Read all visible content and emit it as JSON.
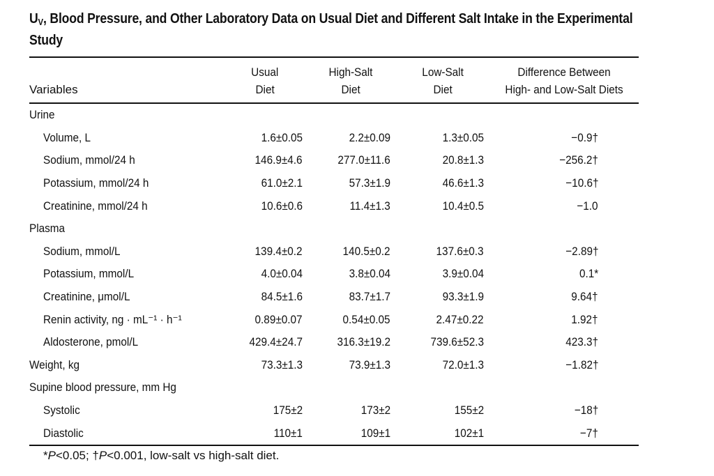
{
  "title": {
    "prefix": "U",
    "subscript": "V",
    "rest": ", Blood Pressure, and Other Laboratory Data on Usual Diet and Different Salt Intake in the Experimental Study"
  },
  "headers": {
    "variables": "Variables",
    "usual_line1": "Usual",
    "usual_line2": "Diet",
    "high_line1": "High-Salt",
    "high_line2": "Diet",
    "low_line1": "Low-Salt",
    "low_line2": "Diet",
    "diff_line1": "Difference Between",
    "diff_line2": "High- and Low-Salt Diets"
  },
  "rows": [
    {
      "label": "Urine",
      "section": true,
      "usual": "",
      "high": "",
      "low": "",
      "diff": ""
    },
    {
      "label": "Volume, L",
      "section": false,
      "usual": "1.6±0.05",
      "high": "2.2±0.09",
      "low": "1.3±0.05",
      "diff": "−0.9†"
    },
    {
      "label": "Sodium, mmol/24 h",
      "section": false,
      "usual": "146.9±4.6",
      "high": "277.0±11.6",
      "low": "20.8±1.3",
      "diff": "−256.2†"
    },
    {
      "label": "Potassium, mmol/24 h",
      "section": false,
      "usual": "61.0±2.1",
      "high": "57.3±1.9",
      "low": "46.6±1.3",
      "diff": "−10.6†"
    },
    {
      "label": "Creatinine, mmol/24 h",
      "section": false,
      "usual": "10.6±0.6",
      "high": "11.4±1.3",
      "low": "10.4±0.5",
      "diff": "−1.0"
    },
    {
      "label": "Plasma",
      "section": true,
      "usual": "",
      "high": "",
      "low": "",
      "diff": ""
    },
    {
      "label": "Sodium, mmol/L",
      "section": false,
      "usual": "139.4±0.2",
      "high": "140.5±0.2",
      "low": "137.6±0.3",
      "diff": "−2.89†"
    },
    {
      "label": "Potassium, mmol/L",
      "section": false,
      "usual": "4.0±0.04",
      "high": "3.8±0.04",
      "low": "3.9±0.04",
      "diff": "0.1*"
    },
    {
      "label": "Creatinine, μmol/L",
      "section": false,
      "usual": "84.5±1.6",
      "high": "83.7±1.7",
      "low": "93.3±1.9",
      "diff": "9.64†"
    },
    {
      "label": "Renin activity, ng · mL⁻¹ · h⁻¹",
      "section": false,
      "usual": "0.89±0.07",
      "high": "0.54±0.05",
      "low": "2.47±0.22",
      "diff": "1.92†"
    },
    {
      "label": "Aldosterone, pmol/L",
      "section": false,
      "usual": "429.4±24.7",
      "high": "316.3±19.2",
      "low": "739.6±52.3",
      "diff": "423.3†"
    },
    {
      "label": "Weight, kg",
      "section": true,
      "usual": "73.3±1.3",
      "high": "73.9±1.3",
      "low": "72.0±1.3",
      "diff": "−1.82†"
    },
    {
      "label": "Supine blood pressure, mm Hg",
      "section": true,
      "usual": "",
      "high": "",
      "low": "",
      "diff": ""
    },
    {
      "label": "Systolic",
      "section": false,
      "usual": "175±2",
      "high": "173±2",
      "low": "155±2",
      "diff": "−18†"
    },
    {
      "label": "Diastolic",
      "section": false,
      "usual": "110±1",
      "high": "109±1",
      "low": "102±1",
      "diff": "−7†"
    }
  ],
  "footnote": {
    "star": "*",
    "p1": "P",
    "text1": "<0.05; †",
    "p2": "P",
    "text2": "<0.001, low-salt vs high-salt diet."
  }
}
